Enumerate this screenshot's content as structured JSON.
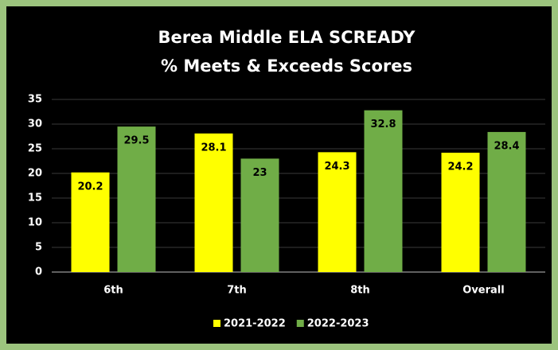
{
  "chart_data": {
    "type": "bar",
    "title": [
      "Berea Middle ELA SCREADY",
      "% Meets & Exceeds Scores"
    ],
    "categories": [
      "6th",
      "7th",
      "8th",
      "Overall"
    ],
    "series": [
      {
        "name": "2021-2022",
        "color": "#ffff00",
        "values": [
          20.2,
          28.1,
          24.3,
          24.2
        ]
      },
      {
        "name": "2022-2023",
        "color": "#70ad47",
        "values": [
          29.5,
          23,
          32.8,
          28.4
        ]
      }
    ],
    "ylim": [
      0,
      35
    ],
    "yticks": [
      0,
      5,
      10,
      15,
      20,
      25,
      30,
      35
    ],
    "grid": true,
    "legend": "bottom"
  }
}
